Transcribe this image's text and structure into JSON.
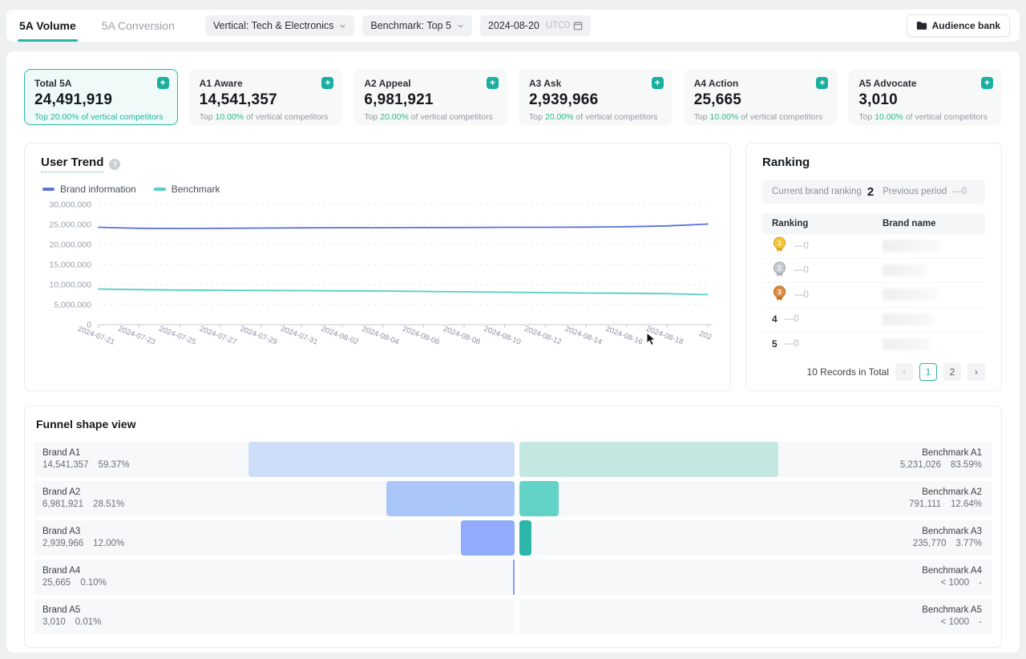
{
  "header": {
    "tabs": [
      {
        "label": "5A Volume",
        "active": true
      },
      {
        "label": "5A Conversion",
        "active": false
      }
    ],
    "filters": [
      {
        "label": "Vertical: Tech & Electronics"
      },
      {
        "label": "Benchmark: Top 5"
      }
    ],
    "date": {
      "value": "2024-08-20",
      "timezone": "UTC0"
    },
    "audience_bank_label": "Audience bank"
  },
  "metric_cards": [
    {
      "label": "Total 5A",
      "value": "24,491,919",
      "top_prefix": "Top",
      "top_pct": "20.00%",
      "top_suffix": "of vertical competitors",
      "selected": true
    },
    {
      "label": "A1 Aware",
      "value": "14,541,357",
      "top_prefix": "Top",
      "top_pct": "10.00%",
      "top_suffix": "of vertical competitors",
      "selected": false
    },
    {
      "label": "A2 Appeal",
      "value": "6,981,921",
      "top_prefix": "Top",
      "top_pct": "20.00%",
      "top_suffix": "of vertical competitors",
      "selected": false
    },
    {
      "label": "A3 Ask",
      "value": "2,939,966",
      "top_prefix": "Top",
      "top_pct": "20.00%",
      "top_suffix": "of vertical competitors",
      "selected": false
    },
    {
      "label": "A4 Action",
      "value": "25,665",
      "top_prefix": "Top",
      "top_pct": "10.00%",
      "top_suffix": "of vertical competitors",
      "selected": false
    },
    {
      "label": "A5 Advocate",
      "value": "3,010",
      "top_prefix": "Top",
      "top_pct": "10.00%",
      "top_suffix": "of vertical competitors",
      "selected": false
    }
  ],
  "trend": {
    "title": "User Trend"
  },
  "chart_data": {
    "type": "line",
    "title": "User Trend",
    "x": [
      "2024-07-21",
      "2024-07-23",
      "2024-07-25",
      "2024-07-27",
      "2024-07-29",
      "2024-07-31",
      "2024-08-02",
      "2024-08-04",
      "2024-08-06",
      "2024-08-08",
      "2024-08-10",
      "2024-08-12",
      "2024-08-14",
      "2024-08-16",
      "2024-08-18",
      "202"
    ],
    "series": [
      {
        "name": "Brand information",
        "color": "#5b74d8",
        "values": [
          24300000,
          24050000,
          24000000,
          24050000,
          24100000,
          24150000,
          24200000,
          24200000,
          24250000,
          24250000,
          24300000,
          24300000,
          24350000,
          24450000,
          24650000,
          25100000
        ]
      },
      {
        "name": "Benchmark",
        "color": "#55cfc5",
        "values": [
          8900000,
          8750000,
          8650000,
          8600000,
          8550000,
          8500000,
          8450000,
          8400000,
          8300000,
          8200000,
          8100000,
          8000000,
          7900000,
          7850000,
          7750000,
          7500000
        ]
      }
    ],
    "ylim": [
      0,
      30000000
    ],
    "yticks": [
      "0",
      "5,000,000",
      "10,000,000",
      "15,000,000",
      "20,000,000",
      "25,000,000",
      "30,000,000"
    ],
    "grid": true,
    "legend_position": "top-left"
  },
  "ranking": {
    "title": "Ranking",
    "current_label": "Current brand ranking",
    "current_value": "2",
    "previous_label": "Previous period",
    "previous_value": "—0",
    "columns": [
      "Ranking",
      "Brand name"
    ],
    "rows": [
      {
        "rank": "1",
        "medal": "gold",
        "delta": "—0"
      },
      {
        "rank": "2",
        "medal": "silver",
        "delta": "—0"
      },
      {
        "rank": "3",
        "medal": "bronze",
        "delta": "—0"
      },
      {
        "rank": "4",
        "medal": null,
        "delta": "—0"
      },
      {
        "rank": "5",
        "medal": null,
        "delta": "—0"
      }
    ],
    "medal_colors": {
      "gold": "#f3c63b",
      "silver": "#c7cbd1",
      "bronze": "#dd8e44"
    },
    "footer": "10 Records in Total",
    "pagination": {
      "prev": "‹",
      "pages": [
        "1",
        "2"
      ],
      "active": "1",
      "next": "›"
    }
  },
  "funnel": {
    "title": "Funnel shape view",
    "brand_bar_colors": [
      "#cedef8",
      "#aac5f8",
      "#90acfa",
      "#7f9dfb",
      "#7f9dfb"
    ],
    "bench_bar_colors": [
      "#c4e8e1",
      "#63d2c7",
      "#2fb6aa",
      "#2fb6aa",
      "#2fb6aa"
    ],
    "rows": [
      {
        "brand_label": "Brand A1",
        "brand_value": "14,541,357",
        "brand_pct": "59.37%",
        "brand_pct_num": 59.37,
        "bench_label": "Benchmark A1",
        "bench_value": "5,231,026",
        "bench_pct": "83.59%",
        "bench_pct_num": 83.59
      },
      {
        "brand_label": "Brand A2",
        "brand_value": "6,981,921",
        "brand_pct": "28.51%",
        "brand_pct_num": 28.51,
        "bench_label": "Benchmark A2",
        "bench_value": "791,111",
        "bench_pct": "12.64%",
        "bench_pct_num": 12.64
      },
      {
        "brand_label": "Brand A3",
        "brand_value": "2,939,966",
        "brand_pct": "12.00%",
        "brand_pct_num": 12.0,
        "bench_label": "Benchmark A3",
        "bench_value": "235,770",
        "bench_pct": "3.77%",
        "bench_pct_num": 3.77
      },
      {
        "brand_label": "Brand A4",
        "brand_value": "25,665",
        "brand_pct": "0.10%",
        "brand_pct_num": 0.1,
        "bench_label": "Benchmark A4",
        "bench_value": "< 1000",
        "bench_pct": "-",
        "bench_pct_num": 0
      },
      {
        "brand_label": "Brand A5",
        "brand_value": "3,010",
        "brand_pct": "0.01%",
        "brand_pct_num": 0.01,
        "bench_label": "Benchmark A5",
        "bench_value": "< 1000",
        "bench_pct": "-",
        "bench_pct_num": 0
      }
    ]
  }
}
